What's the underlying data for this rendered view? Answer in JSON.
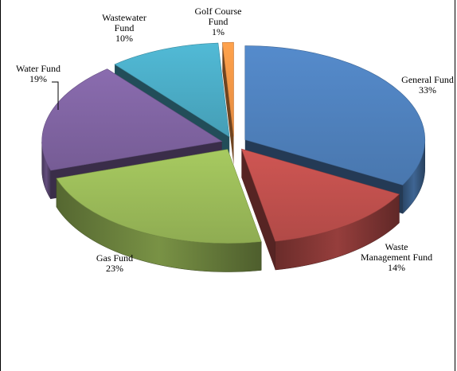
{
  "chart_data": {
    "type": "pie",
    "title": "",
    "three_d": true,
    "exploded": true,
    "slices": [
      {
        "label": [
          "General Fund",
          "33%"
        ],
        "value": 33,
        "color": "#4f81bd"
      },
      {
        "label": [
          "Waste",
          "Management Fund",
          "14%"
        ],
        "value": 14,
        "color": "#c0504d"
      },
      {
        "label": [
          "Gas Fund",
          "23%"
        ],
        "value": 23,
        "color": "#9bbb59"
      },
      {
        "label": [
          "Water Fund",
          "19%"
        ],
        "value": 19,
        "color": "#8064a2"
      },
      {
        "label": [
          "Wastewater",
          "Fund",
          "10%"
        ],
        "value": 10,
        "color": "#4bacc6"
      },
      {
        "label": [
          "Golf Course",
          "Fund",
          "1%"
        ],
        "value": 1,
        "color": "#f79646"
      }
    ]
  }
}
